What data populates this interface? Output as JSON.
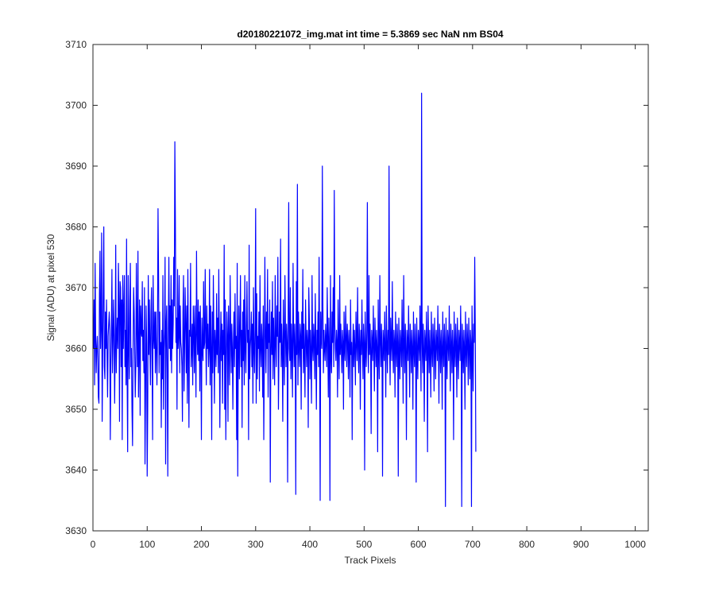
{
  "colors": {
    "background": "#ffffff",
    "axes": "#262626",
    "series": "#0000ff"
  },
  "chart_data": {
    "type": "line",
    "title": "d20180221072_img.mat int time = 5.3869 sec  NaN nm BS04",
    "xlabel": "Track Pixels",
    "ylabel": "Signal (ADU) at pixel 530",
    "xlim": [
      0,
      1024
    ],
    "ylim": [
      3630,
      3710
    ],
    "xticks": [
      0,
      100,
      200,
      300,
      400,
      500,
      600,
      700,
      800,
      900,
      1000
    ],
    "yticks": [
      3630,
      3640,
      3650,
      3660,
      3670,
      3680,
      3690,
      3700,
      3710
    ],
    "xtick_labels": [
      "0",
      "100",
      "200",
      "300",
      "400",
      "500",
      "600",
      "700",
      "800",
      "900",
      "1000"
    ],
    "ytick_labels": [
      "3630",
      "3640",
      "3650",
      "3660",
      "3670",
      "3680",
      "3690",
      "3700",
      "3710"
    ],
    "grid": false,
    "box": true,
    "series": [
      {
        "x_start": 1,
        "x_step": 1,
        "values": [
          3660,
          3668,
          3654,
          3674,
          3662,
          3656,
          3660,
          3662,
          3658,
          3652,
          3651,
          3669,
          3676,
          3660,
          3664,
          3679,
          3648,
          3660,
          3670,
          3680,
          3657,
          3655,
          3666,
          3660,
          3668,
          3659,
          3652,
          3662,
          3664,
          3666,
          3663,
          3645,
          3657,
          3663,
          3673,
          3656,
          3661,
          3668,
          3662,
          3651,
          3660,
          3677,
          3656,
          3662,
          3665,
          3660,
          3674,
          3667,
          3648,
          3671,
          3670,
          3657,
          3668,
          3645,
          3672,
          3660,
          3666,
          3672,
          3657,
          3663,
          3654,
          3678,
          3656,
          3643,
          3672,
          3661,
          3655,
          3668,
          3674,
          3657,
          3660,
          3650,
          3644,
          3660,
          3670,
          3666,
          3659,
          3652,
          3657,
          3674,
          3663,
          3657,
          3676,
          3652,
          3660,
          3668,
          3649,
          3667,
          3663,
          3662,
          3671,
          3658,
          3663,
          3656,
          3670,
          3641,
          3652,
          3667,
          3661,
          3639,
          3650,
          3672,
          3659,
          3668,
          3661,
          3654,
          3666,
          3670,
          3658,
          3645,
          3672,
          3662,
          3660,
          3666,
          3656,
          3666,
          3660,
          3654,
          3662,
          3683,
          3672,
          3656,
          3666,
          3659,
          3661,
          3647,
          3663,
          3655,
          3672,
          3650,
          3660,
          3663,
          3675,
          3641,
          3664,
          3667,
          3656,
          3639,
          3663,
          3675,
          3660,
          3667,
          3658,
          3672,
          3656,
          3668,
          3660,
          3664,
          3675,
          3667,
          3694,
          3681,
          3661,
          3665,
          3650,
          3673,
          3660,
          3662,
          3672,
          3656,
          3667,
          3661,
          3660,
          3657,
          3648,
          3666,
          3672,
          3653,
          3660,
          3670,
          3664,
          3656,
          3667,
          3651,
          3673,
          3660,
          3647,
          3663,
          3662,
          3674,
          3657,
          3660,
          3664,
          3654,
          3667,
          3663,
          3656,
          3667,
          3660,
          3652,
          3676,
          3663,
          3659,
          3668,
          3658,
          3666,
          3653,
          3667,
          3660,
          3645,
          3665,
          3660,
          3658,
          3671,
          3660,
          3661,
          3673,
          3663,
          3654,
          3667,
          3660,
          3664,
          3657,
          3660,
          3673,
          3654,
          3667,
          3660,
          3645,
          3666,
          3656,
          3672,
          3662,
          3651,
          3663,
          3660,
          3657,
          3669,
          3659,
          3665,
          3656,
          3673,
          3662,
          3647,
          3660,
          3666,
          3658,
          3664,
          3651,
          3663,
          3659,
          3677,
          3650,
          3668,
          3645,
          3658,
          3666,
          3662,
          3648,
          3667,
          3660,
          3654,
          3672,
          3663,
          3656,
          3664,
          3660,
          3650,
          3661,
          3666,
          3657,
          3669,
          3660,
          3662,
          3645,
          3674,
          3639,
          3660,
          3667,
          3655,
          3663,
          3672,
          3657,
          3663,
          3647,
          3666,
          3658,
          3668,
          3654,
          3672,
          3660,
          3656,
          3664,
          3671,
          3661,
          3663,
          3645,
          3677,
          3655,
          3660,
          3662,
          3666,
          3657,
          3664,
          3651,
          3670,
          3660,
          3656,
          3663,
          3683,
          3651,
          3669,
          3655,
          3662,
          3660,
          3666,
          3653,
          3672,
          3660,
          3657,
          3664,
          3661,
          3652,
          3667,
          3645,
          3658,
          3675,
          3662,
          3656,
          3666,
          3660,
          3673,
          3652,
          3664,
          3661,
          3668,
          3638,
          3660,
          3666,
          3659,
          3671,
          3655,
          3665,
          3660,
          3654,
          3672,
          3661,
          3657,
          3667,
          3662,
          3675,
          3650,
          3659,
          3666,
          3661,
          3678,
          3657,
          3664,
          3660,
          3648,
          3668,
          3660,
          3654,
          3672,
          3663,
          3657,
          3664,
          3661,
          3638,
          3666,
          3684,
          3660,
          3658,
          3670,
          3655,
          3664,
          3660,
          3652,
          3674,
          3662,
          3657,
          3664,
          3660,
          3636,
          3671,
          3659,
          3687,
          3654,
          3666,
          3660,
          3657,
          3664,
          3662,
          3650,
          3666,
          3660,
          3673,
          3656,
          3664,
          3659,
          3652,
          3668,
          3662,
          3657,
          3663,
          3661,
          3647,
          3670,
          3665,
          3655,
          3663,
          3659,
          3651,
          3672,
          3660,
          3658,
          3664,
          3661,
          3655,
          3669,
          3660,
          3650,
          3663,
          3659,
          3666,
          3657,
          3675,
          3660,
          3635,
          3666,
          3662,
          3660,
          3690,
          3667,
          3656,
          3663,
          3660,
          3658,
          3664,
          3661,
          3657,
          3670,
          3662,
          3652,
          3665,
          3660,
          3635,
          3672,
          3659,
          3656,
          3666,
          3661,
          3670,
          3657,
          3686,
          3664,
          3660,
          3658,
          3663,
          3661,
          3652,
          3668,
          3660,
          3655,
          3672,
          3659,
          3664,
          3660,
          3656,
          3663,
          3661,
          3650,
          3666,
          3660,
          3658,
          3667,
          3662,
          3657,
          3664,
          3661,
          3655,
          3663,
          3660,
          3652,
          3668,
          3659,
          3661,
          3645,
          3660,
          3664,
          3657,
          3663,
          3660,
          3654,
          3666,
          3661,
          3658,
          3670,
          3660,
          3656,
          3664,
          3661,
          3650,
          3663,
          3659,
          3668,
          3660,
          3655,
          3664,
          3661,
          3640,
          3666,
          3660,
          3657,
          3663,
          3684,
          3660,
          3656,
          3672,
          3659,
          3664,
          3660,
          3646,
          3663,
          3661,
          3658,
          3667,
          3660,
          3653,
          3665,
          3661,
          3657,
          3663,
          3660,
          3643,
          3668,
          3660,
          3655,
          3672,
          3661,
          3657,
          3664,
          3660,
          3639,
          3663,
          3661,
          3658,
          3666,
          3660,
          3652,
          3667,
          3661,
          3656,
          3663,
          3659,
          3690,
          3660,
          3654,
          3665,
          3661,
          3658,
          3671,
          3660,
          3656,
          3663,
          3661,
          3652,
          3666,
          3660,
          3657,
          3664,
          3661,
          3639,
          3665,
          3660,
          3655,
          3663,
          3661,
          3657,
          3668,
          3660,
          3651,
          3672,
          3661,
          3656,
          3664,
          3660,
          3645,
          3663,
          3661,
          3658,
          3667,
          3660,
          3652,
          3664,
          3661,
          3656,
          3663,
          3660,
          3650,
          3666,
          3660,
          3657,
          3664,
          3661,
          3638,
          3665,
          3660,
          3655,
          3663,
          3661,
          3658,
          3667,
          3660,
          3653,
          3702,
          3661,
          3656,
          3664,
          3660,
          3648,
          3663,
          3661,
          3658,
          3666,
          3660,
          3643,
          3667,
          3661,
          3656,
          3663,
          3659,
          3652,
          3666,
          3660,
          3657,
          3664,
          3661,
          3653,
          3665,
          3660,
          3655,
          3663,
          3661,
          3658,
          3667,
          3660,
          3651,
          3664,
          3661,
          3656,
          3663,
          3660,
          3650,
          3666,
          3660,
          3657,
          3664,
          3661,
          3634,
          3665,
          3660,
          3655,
          3663,
          3661,
          3658,
          3667,
          3660,
          3653,
          3664,
          3661,
          3656,
          3663,
          3660,
          3645,
          3666,
          3660,
          3657,
          3664,
          3661,
          3652,
          3665,
          3660,
          3655,
          3663,
          3661,
          3658,
          3667,
          3660,
          3634,
          3664,
          3661,
          3656,
          3663,
          3660,
          3650,
          3666,
          3660,
          3657,
          3664,
          3661,
          3654,
          3665,
          3660,
          3655,
          3663,
          3661,
          3634,
          3667,
          3660,
          3653,
          3664,
          3661,
          3675,
          3663,
          3643
        ]
      }
    ]
  }
}
